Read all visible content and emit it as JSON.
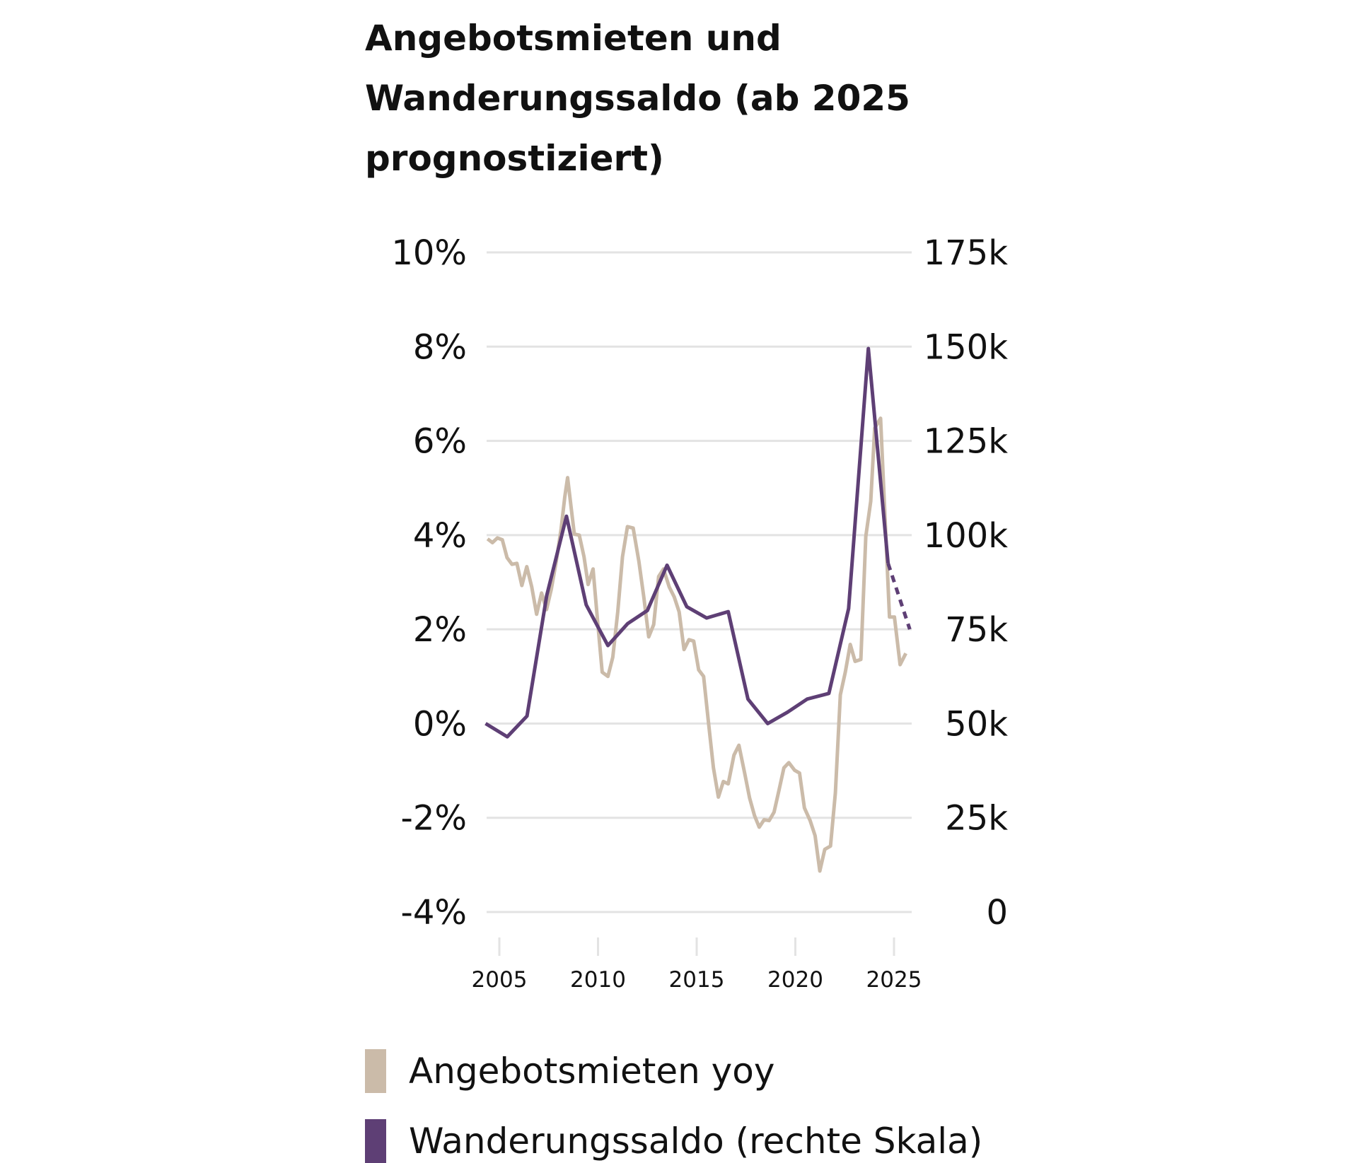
{
  "chart_data": {
    "type": "line",
    "title": "Angebotsmieten und Wanderungssaldo (ab 2025 prognostiziert)",
    "x_ticks": [
      "2005",
      "2010",
      "2015",
      "2020",
      "2025"
    ],
    "y_left": {
      "ticks": [
        "10%",
        "8%",
        "6%",
        "4%",
        "2%",
        "0%",
        "-2%",
        "-4%"
      ],
      "range": [
        -4,
        10
      ]
    },
    "y_right": {
      "ticks": [
        "175k",
        "150k",
        "125k",
        "100k",
        "75k",
        "50k",
        "25k",
        "0"
      ],
      "range": [
        0,
        175
      ]
    },
    "grid": true,
    "legend_position": "bottom",
    "series": [
      {
        "name": "Angebotsmieten yoy",
        "axis": "left",
        "color": "#cbbba9",
        "x": [
          2004.4,
          2004.65,
          2004.9,
          2005.15,
          2005.39,
          2005.64,
          2005.89,
          2006.14,
          2006.39,
          2006.64,
          2006.89,
          2007.14,
          2007.39,
          2007.63,
          2007.88,
          2008.13,
          2008.32,
          2008.46,
          2008.63,
          2008.8,
          2009.05,
          2009.29,
          2009.5,
          2009.75,
          2009.96,
          2010.21,
          2010.5,
          2010.75,
          2011.0,
          2011.24,
          2011.49,
          2011.78,
          2012.07,
          2012.32,
          2012.57,
          2012.82,
          2013.07,
          2013.32,
          2013.61,
          2013.86,
          2014.11,
          2014.36,
          2014.61,
          2014.85,
          2015.1,
          2015.35,
          2015.6,
          2015.85,
          2016.1,
          2016.35,
          2016.6,
          2016.89,
          2017.14,
          2017.43,
          2017.68,
          2017.93,
          2018.17,
          2018.42,
          2018.67,
          2018.92,
          2019.17,
          2019.42,
          2019.67,
          2019.96,
          2020.21,
          2020.46,
          2020.75,
          2021.0,
          2021.24,
          2021.49,
          2021.78,
          2022.03,
          2022.28,
          2022.53,
          2022.78,
          2023.03,
          2023.32,
          2023.57,
          2023.82,
          2024.02,
          2024.32,
          2024.77,
          2025.02,
          2025.31,
          2025.6
        ],
        "values": [
          3.92,
          3.84,
          3.94,
          3.9,
          3.52,
          3.38,
          3.4,
          2.93,
          3.33,
          2.9,
          2.32,
          2.77,
          2.42,
          2.85,
          3.44,
          4.13,
          4.82,
          5.22,
          4.61,
          4.02,
          4.0,
          3.54,
          2.95,
          3.28,
          2.26,
          1.09,
          1.0,
          1.41,
          2.37,
          3.54,
          4.18,
          4.15,
          3.44,
          2.69,
          1.84,
          2.1,
          3.12,
          3.28,
          2.9,
          2.69,
          2.37,
          1.57,
          1.78,
          1.75,
          1.14,
          1.0,
          0.02,
          -0.94,
          -1.56,
          -1.23,
          -1.28,
          -0.67,
          -0.46,
          -1.05,
          -1.58,
          -1.95,
          -2.2,
          -2.04,
          -2.06,
          -1.88,
          -1.42,
          -0.94,
          -0.83,
          -0.99,
          -1.05,
          -1.79,
          -2.06,
          -2.38,
          -3.13,
          -2.67,
          -2.6,
          -1.47,
          0.61,
          1.09,
          1.68,
          1.32,
          1.36,
          3.97,
          4.72,
          6.27,
          6.48,
          2.26,
          2.26,
          1.25,
          1.49
        ]
      },
      {
        "name": "Wanderungssaldo (rechte Skala)",
        "axis": "right",
        "color": "#5e3f75",
        "x": [
          2004.3,
          2005.4,
          2006.4,
          2007.4,
          2008.4,
          2009.4,
          2010.5,
          2011.5,
          2012.5,
          2013.5,
          2014.5,
          2015.5,
          2016.6,
          2017.6,
          2018.6,
          2019.6,
          2020.6,
          2021.7,
          2022.7,
          2023.7,
          2024.7
        ],
        "values": [
          50,
          46.5,
          52,
          84,
          105,
          81.5,
          70.7,
          76.5,
          80,
          92,
          81,
          78,
          79.7,
          56.5,
          50,
          53,
          56.5,
          58,
          80.5,
          149.5,
          92.5
        ],
        "forecast": {
          "x": [
            2024.7,
            2025.8
          ],
          "values": [
            92.5,
            75
          ]
        }
      }
    ]
  }
}
